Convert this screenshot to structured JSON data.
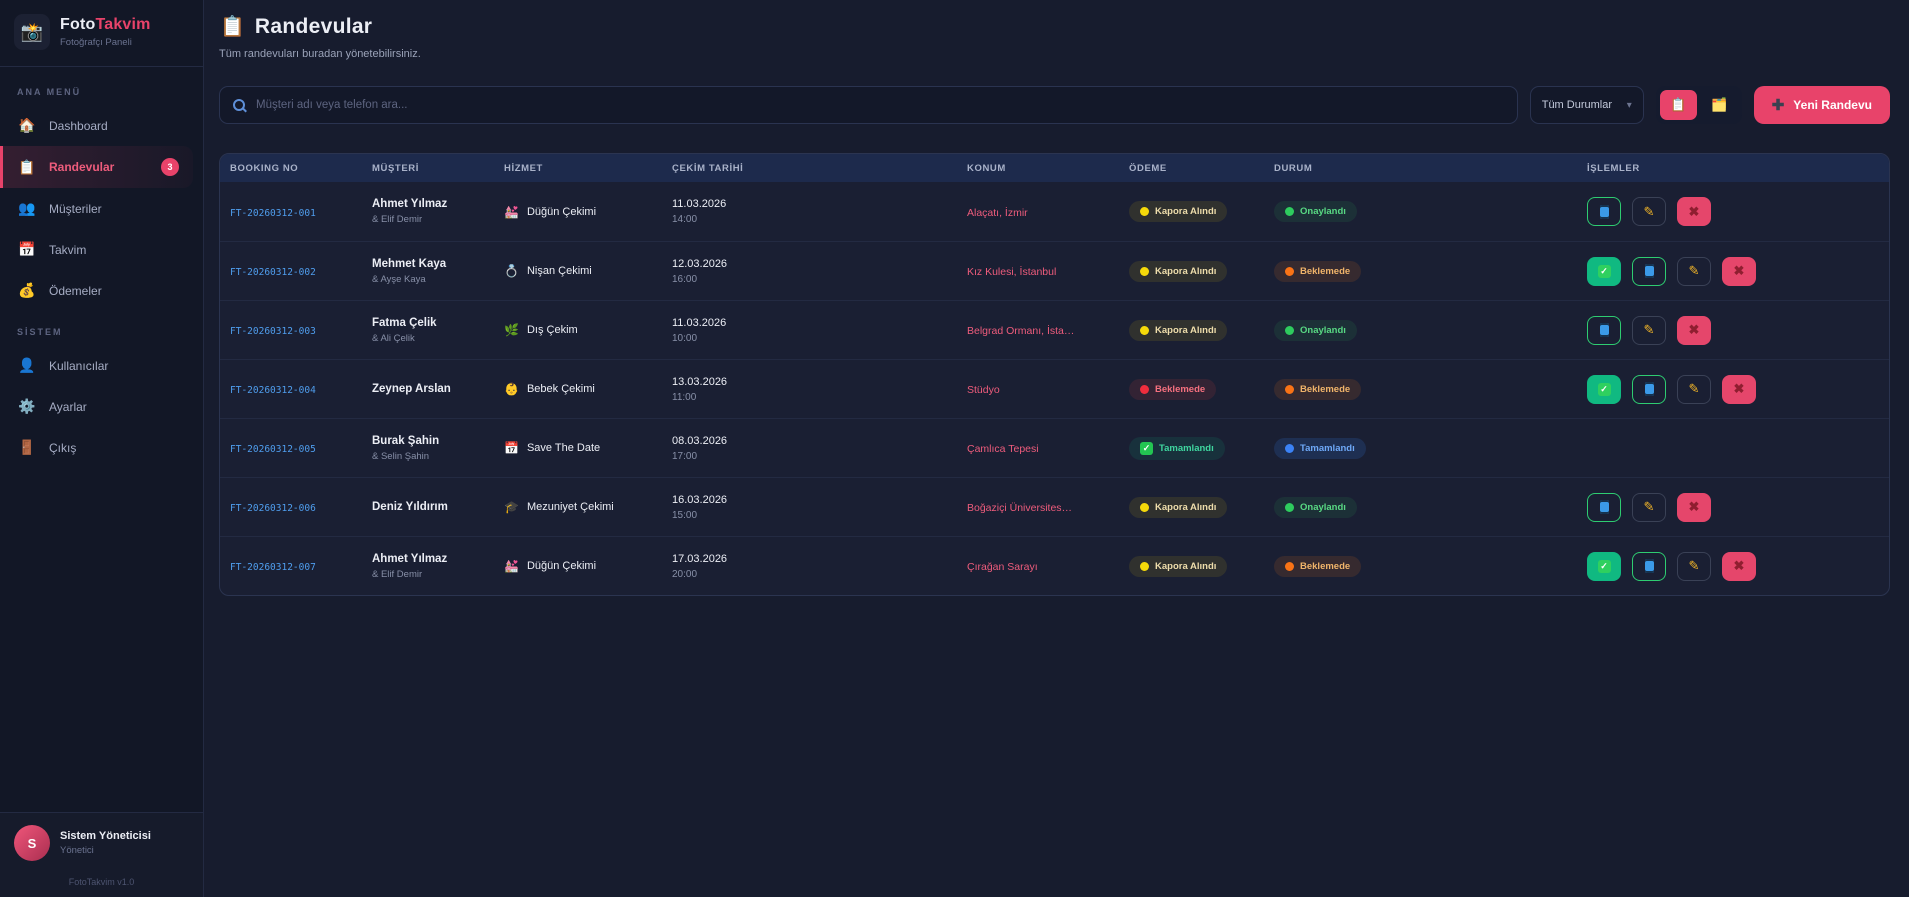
{
  "app": {
    "logo_icon": "📸",
    "brand_foto": "Foto",
    "brand_takvim": "Takvim",
    "tagline": "Fotoğrafçı Paneli",
    "version": "FotoTakvim v1.0",
    "accent_color": "#e8436a"
  },
  "sidebar": {
    "sections": [
      {
        "label": "ANA MENÜ",
        "items": [
          {
            "id": "dashboard",
            "icon": "🏠",
            "icon_name": "home-icon",
            "label": "Dashboard",
            "active": false,
            "badge": null
          },
          {
            "id": "randevular",
            "icon": "📋",
            "icon_name": "clipboard-icon",
            "label": "Randevular",
            "active": true,
            "badge": "3"
          },
          {
            "id": "musteriler",
            "icon": "👥",
            "icon_name": "users-icon",
            "label": "Müşteriler",
            "active": false,
            "badge": null
          },
          {
            "id": "takvim",
            "icon": "📅",
            "icon_name": "calendar-icon",
            "label": "Takvim",
            "active": false,
            "badge": null
          },
          {
            "id": "odemeler",
            "icon": "💰",
            "icon_name": "money-bag-icon",
            "label": "Ödemeler",
            "active": false,
            "badge": null
          }
        ]
      },
      {
        "label": "SİSTEM",
        "items": [
          {
            "id": "kullanicilar",
            "icon": "👤",
            "icon_name": "user-icon",
            "label": "Kullanıcılar",
            "active": false,
            "badge": null
          },
          {
            "id": "ayarlar",
            "icon": "⚙️",
            "icon_name": "gear-icon",
            "label": "Ayarlar",
            "active": false,
            "badge": null
          },
          {
            "id": "cikis",
            "icon": "🚪",
            "icon_name": "door-icon",
            "label": "Çıkış",
            "active": false,
            "badge": null
          }
        ]
      }
    ],
    "user": {
      "initial": "S",
      "name": "Sistem Yöneticisi",
      "role": "Yönetici"
    }
  },
  "header": {
    "icon": "📋",
    "title": "Randevular",
    "subtitle": "Tüm randevuları buradan yönetebilirsiniz."
  },
  "toolbar": {
    "search_placeholder": "Müşteri adı veya telefon ara...",
    "filter_value": "Tüm Durumlar",
    "view_list_icon": "📋",
    "view_card_icon": "🗂️",
    "new_button_label": "Yeni Randevu"
  },
  "table": {
    "columns": [
      "BOOKING NO",
      "MÜŞTERİ",
      "HİZMET",
      "ÇEKİM TARİHİ",
      "KONUM",
      "ÖDEME",
      "DURUM",
      "İŞLEMLER"
    ],
    "rows": [
      {
        "booking_no": "FT-20260312-001",
        "customer": "Ahmet Yılmaz",
        "partner": "& Elif Demir",
        "service_icon": "💒",
        "service_icon_name": "wedding-icon",
        "service": "Düğün Çekimi",
        "date": "11.03.2026",
        "time": "14:00",
        "location": "Alaçatı, İzmir",
        "payment": {
          "label": "Kapora Alındı",
          "type": "deposit"
        },
        "status": {
          "label": "Onaylandı",
          "type": "approved"
        },
        "actions": [
          "phone",
          "edit",
          "delete"
        ]
      },
      {
        "booking_no": "FT-20260312-002",
        "customer": "Mehmet Kaya",
        "partner": "& Ayşe Kaya",
        "service_icon": "💍",
        "service_icon_name": "ring-icon",
        "service": "Nişan Çekimi",
        "date": "12.03.2026",
        "time": "16:00",
        "location": "Kız Kulesi, İstanbul",
        "payment": {
          "label": "Kapora Alındı",
          "type": "deposit"
        },
        "status": {
          "label": "Beklemede",
          "type": "pending"
        },
        "actions": [
          "approve",
          "phone",
          "edit",
          "delete"
        ]
      },
      {
        "booking_no": "FT-20260312-003",
        "customer": "Fatma Çelik",
        "partner": "& Ali Çelik",
        "service_icon": "🌿",
        "service_icon_name": "herb-icon",
        "service": "Dış Çekim",
        "date": "11.03.2026",
        "time": "10:00",
        "location": "Belgrad Ormanı, İsta…",
        "payment": {
          "label": "Kapora Alındı",
          "type": "deposit"
        },
        "status": {
          "label": "Onaylandı",
          "type": "approved"
        },
        "actions": [
          "phone",
          "edit",
          "delete"
        ]
      },
      {
        "booking_no": "FT-20260312-004",
        "customer": "Zeynep Arslan",
        "partner": "",
        "service_icon": "👶",
        "service_icon_name": "baby-icon",
        "service": "Bebek Çekimi",
        "date": "13.03.2026",
        "time": "11:00",
        "location": "Stüdyo",
        "payment": {
          "label": "Beklemede",
          "type": "pending"
        },
        "status": {
          "label": "Beklemede",
          "type": "pending"
        },
        "actions": [
          "approve",
          "phone",
          "edit",
          "delete"
        ]
      },
      {
        "booking_no": "FT-20260312-005",
        "customer": "Burak Şahin",
        "partner": "& Selin Şahin",
        "service_icon": "📅",
        "service_icon_name": "calendar-icon",
        "service": "Save The Date",
        "date": "08.03.2026",
        "time": "17:00",
        "location": "Çamlıca Tepesi",
        "payment": {
          "label": "Tamamlandı",
          "type": "completed"
        },
        "status": {
          "label": "Tamamlandı",
          "type": "completed"
        },
        "actions": []
      },
      {
        "booking_no": "FT-20260312-006",
        "customer": "Deniz Yıldırım",
        "partner": "",
        "service_icon": "🎓",
        "service_icon_name": "graduation-icon",
        "service": "Mezuniyet Çekimi",
        "date": "16.03.2026",
        "time": "15:00",
        "location": "Boğaziçi Üniversites…",
        "payment": {
          "label": "Kapora Alındı",
          "type": "deposit"
        },
        "status": {
          "label": "Onaylandı",
          "type": "approved"
        },
        "actions": [
          "phone",
          "edit",
          "delete"
        ]
      },
      {
        "booking_no": "FT-20260312-007",
        "customer": "Ahmet Yılmaz",
        "partner": "& Elif Demir",
        "service_icon": "💒",
        "service_icon_name": "wedding-icon",
        "service": "Düğün Çekimi",
        "date": "17.03.2026",
        "time": "20:00",
        "location": "Çırağan Sarayı",
        "payment": {
          "label": "Kapora Alındı",
          "type": "deposit"
        },
        "status": {
          "label": "Beklemede",
          "type": "pending"
        },
        "actions": [
          "approve",
          "phone",
          "edit",
          "delete"
        ]
      }
    ]
  },
  "colors": {
    "accent": "#e8436a",
    "booking_link": "#4f9ded",
    "status_approved": "#2ecc5e",
    "status_pending": "#f97316",
    "status_completed": "#3b82f6",
    "payment_deposit": "#f5d90a",
    "payment_pending": "#ef4444",
    "payment_completed": "#10b981"
  }
}
